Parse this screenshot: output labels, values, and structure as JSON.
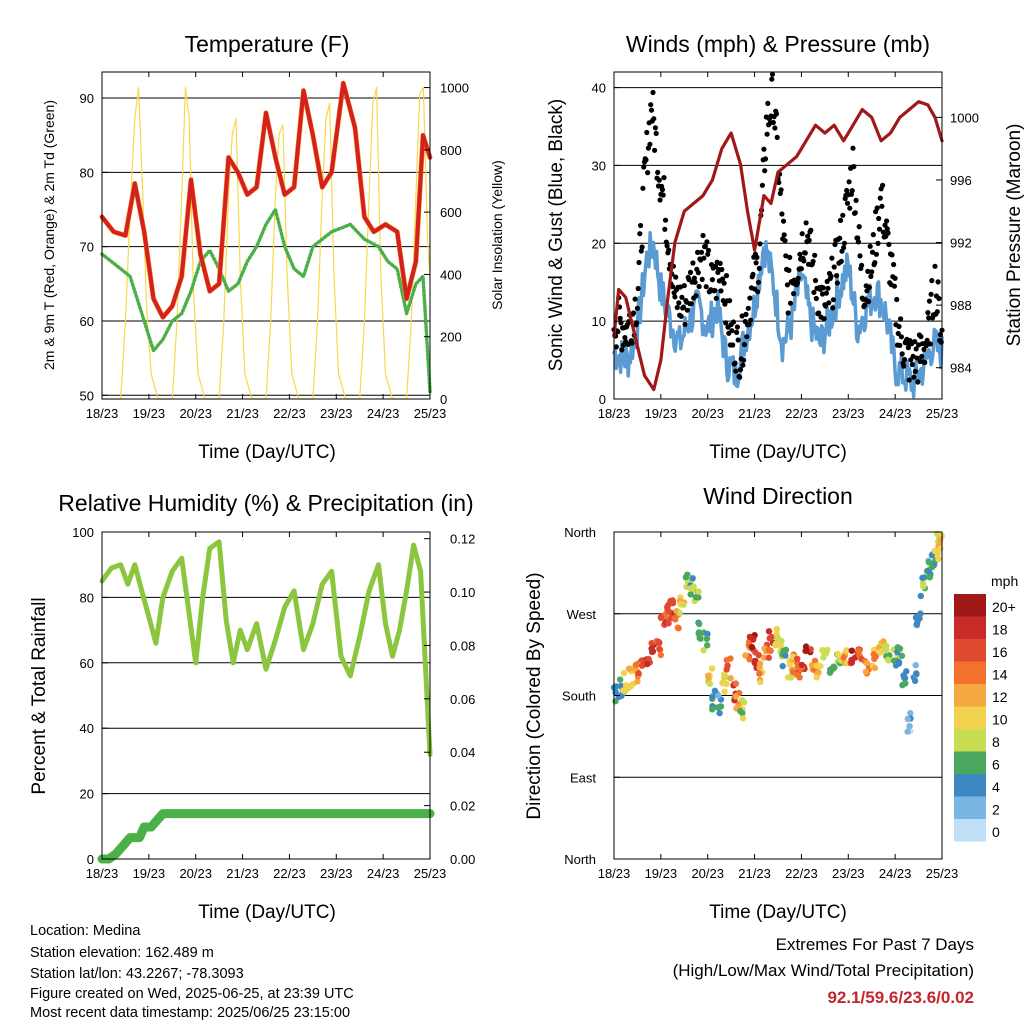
{
  "colors": {
    "temp2m": "#d42020",
    "temp9m": "#f39a1e",
    "dewpoint": "#4bb048",
    "solar": "#f7d84a",
    "wind": "#5a9bd4",
    "gust": "#000000",
    "pressure": "#a01818",
    "rh": "#8cc63f",
    "precip": "#4bb048",
    "extremes": "#c1272d"
  },
  "chart_data": [
    {
      "id": "temperature",
      "type": "line",
      "title": "Temperature (F)",
      "xlabel": "Time (Day/UTC)",
      "ylabel": "2m & 9m T (Red, Orange) & 2m Td (Green)",
      "ylabel_right": "Solar Insolation (Yellow)",
      "x_ticks": [
        "18/23",
        "19/23",
        "20/23",
        "21/23",
        "22/23",
        "23/23",
        "24/23",
        "25/23"
      ],
      "y_ticks": [
        "50",
        "60",
        "70",
        "80",
        "90"
      ],
      "y_ticks_right": [
        "0",
        "200",
        "400",
        "600",
        "800",
        "1000"
      ],
      "ylim": [
        49.5,
        93.5
      ],
      "ylim_right": [
        0,
        1050
      ],
      "xlim": [
        0,
        7
      ],
      "series": [
        {
          "role": "temp2m",
          "x": [
            0,
            0.25,
            0.5,
            0.7,
            0.9,
            1.1,
            1.3,
            1.5,
            1.7,
            1.9,
            2.1,
            2.3,
            2.5,
            2.7,
            2.9,
            3.1,
            3.3,
            3.5,
            3.7,
            3.9,
            4.1,
            4.3,
            4.5,
            4.7,
            4.9,
            5.15,
            5.4,
            5.6,
            5.8,
            6.05,
            6.3,
            6.5,
            6.7,
            6.85,
            7
          ],
          "values": [
            74,
            72,
            71.5,
            78.5,
            72,
            63,
            60.5,
            62,
            66,
            79,
            69,
            64,
            65,
            82,
            80,
            77,
            78,
            88,
            82,
            77,
            78,
            91,
            85,
            78,
            80,
            92,
            86,
            74,
            72,
            73,
            72,
            63,
            68,
            85,
            82
          ]
        },
        {
          "role": "dewpoint",
          "x": [
            0,
            0.3,
            0.6,
            0.9,
            1.1,
            1.3,
            1.5,
            1.7,
            1.9,
            2.1,
            2.3,
            2.5,
            2.7,
            2.9,
            3.1,
            3.3,
            3.5,
            3.7,
            3.9,
            4.1,
            4.3,
            4.5,
            4.7,
            4.9,
            5.1,
            5.3,
            5.6,
            5.9,
            6.1,
            6.3,
            6.5,
            6.7,
            6.85,
            7
          ],
          "values": [
            69,
            67.5,
            66,
            60,
            56,
            57.5,
            60,
            61,
            64,
            68,
            69.5,
            67,
            64,
            65,
            68,
            70,
            73,
            75,
            70,
            67,
            66,
            70,
            71,
            72,
            72.5,
            73,
            71,
            70,
            68,
            67,
            61,
            65,
            66,
            50.5
          ]
        },
        {
          "role": "solar",
          "x": [
            0,
            0.4,
            0.5,
            0.6,
            0.7,
            0.78,
            0.86,
            0.95,
            1.05,
            1.2,
            1.5,
            1.6,
            1.7,
            1.78,
            1.86,
            1.95,
            2.05,
            2.2,
            2.5,
            2.6,
            2.7,
            2.78,
            2.86,
            2.95,
            3.05,
            3.2,
            3.5,
            3.6,
            3.7,
            3.78,
            3.86,
            3.95,
            4.05,
            4.2,
            4.5,
            4.6,
            4.7,
            4.78,
            4.86,
            4.95,
            5.05,
            5.2,
            5.5,
            5.6,
            5.7,
            5.78,
            5.86,
            5.95,
            6.05,
            6.2,
            6.5,
            6.6,
            6.7,
            6.78,
            6.86,
            6.95,
            7
          ],
          "values": [
            0,
            0,
            250,
            600,
            900,
            1000,
            700,
            300,
            80,
            0,
            0,
            250,
            650,
            1000,
            900,
            350,
            80,
            0,
            0,
            250,
            650,
            850,
            900,
            400,
            80,
            0,
            0,
            250,
            650,
            850,
            880,
            400,
            80,
            0,
            0,
            250,
            650,
            900,
            950,
            400,
            80,
            0,
            0,
            250,
            650,
            950,
            1000,
            400,
            80,
            0,
            0,
            250,
            650,
            980,
            1000,
            500,
            400
          ]
        }
      ]
    },
    {
      "id": "winds",
      "type": "line",
      "title": "Winds (mph) & Pressure (mb)",
      "xlabel": "Time (Day/UTC)",
      "ylabel": "Sonic Wind & Gust (Blue, Black)",
      "ylabel_right": "Station Pressure (Maroon)",
      "x_ticks": [
        "18/23",
        "19/23",
        "20/23",
        "21/23",
        "22/23",
        "23/23",
        "24/23",
        "25/23"
      ],
      "y_ticks": [
        "0",
        "10",
        "20",
        "30",
        "40"
      ],
      "y_ticks_right": [
        "984",
        "988",
        "992",
        "996",
        "1000"
      ],
      "ylim": [
        0,
        42
      ],
      "ylim_right": [
        982,
        1002.9
      ],
      "xlim": [
        0,
        7
      ],
      "series": [
        {
          "role": "wind",
          "x": [
            0,
            0.3,
            0.5,
            0.7,
            0.85,
            1.0,
            1.2,
            1.4,
            1.6,
            1.8,
            2.0,
            2.2,
            2.4,
            2.6,
            2.8,
            3.0,
            3.2,
            3.4,
            3.6,
            3.8,
            4.0,
            4.2,
            4.4,
            4.6,
            4.8,
            5.0,
            5.2,
            5.4,
            5.6,
            5.8,
            6.0,
            6.2,
            6.4,
            6.6,
            6.8,
            7
          ],
          "values": [
            6,
            5,
            9,
            18,
            20,
            14,
            10,
            7,
            10,
            12,
            9,
            12,
            5,
            3,
            8,
            12,
            20,
            15,
            7,
            10,
            16,
            10,
            7,
            10,
            14,
            17,
            9,
            12,
            14,
            11,
            4,
            3,
            2,
            4,
            7,
            6
          ]
        },
        {
          "role": "gust",
          "x": [
            0,
            0.3,
            0.5,
            0.65,
            0.8,
            0.95,
            1.1,
            1.3,
            1.5,
            1.7,
            1.9,
            2.1,
            2.3,
            2.5,
            2.7,
            2.9,
            3.1,
            3.25,
            3.4,
            3.55,
            3.7,
            3.9,
            4.1,
            4.3,
            4.5,
            4.7,
            4.9,
            5.1,
            5.3,
            5.5,
            5.7,
            5.9,
            6.1,
            6.3,
            6.5,
            6.7,
            6.85,
            7
          ],
          "values": [
            10,
            9,
            13,
            28,
            38,
            30,
            24,
            13,
            12,
            16,
            19,
            14,
            17,
            8,
            6,
            13,
            18,
            35,
            39,
            26,
            14,
            17,
            22,
            15,
            11,
            16,
            22,
            30,
            14,
            17,
            26,
            17,
            8,
            5,
            5,
            8,
            15,
            8
          ]
        },
        {
          "role": "pressure",
          "x": [
            0,
            0.1,
            0.25,
            0.45,
            0.65,
            0.85,
            1.0,
            1.15,
            1.3,
            1.5,
            1.7,
            1.9,
            2.1,
            2.3,
            2.5,
            2.7,
            2.85,
            3.0,
            3.2,
            3.35,
            3.5,
            3.7,
            3.9,
            4.1,
            4.3,
            4.5,
            4.7,
            4.9,
            5.1,
            5.3,
            5.5,
            5.7,
            5.9,
            6.1,
            6.3,
            6.5,
            6.7,
            6.85,
            7
          ],
          "values": [
            986,
            989,
            988.5,
            986,
            983.5,
            982.6,
            984.5,
            988.5,
            992,
            994,
            994.5,
            995,
            996,
            998,
            999,
            997,
            994,
            991.5,
            995,
            994.5,
            996.5,
            997,
            997.5,
            998.5,
            999.5,
            999,
            999.5,
            998.5,
            999.5,
            1000.5,
            1000,
            998.5,
            999,
            1000,
            1000.5,
            1001,
            1000.8,
            1000,
            998.5
          ]
        }
      ]
    },
    {
      "id": "humidity",
      "type": "line",
      "title": "Relative Humidity (%) & Precipitation (in)",
      "xlabel": "Time (Day/UTC)",
      "ylabel": "Percent & Total Rainfall",
      "x_ticks": [
        "18/23",
        "19/23",
        "20/23",
        "21/23",
        "22/23",
        "23/23",
        "24/23",
        "25/23"
      ],
      "y_ticks": [
        "0",
        "20",
        "40",
        "60",
        "80",
        "100"
      ],
      "y_ticks_right": [
        "0.00",
        "0.02",
        "0.04",
        "0.06",
        "0.08",
        "0.10",
        "0.12"
      ],
      "ylim": [
        0,
        100
      ],
      "ylim_right": [
        0,
        0.1225
      ],
      "xlim": [
        0,
        7
      ],
      "series": [
        {
          "role": "rh",
          "x": [
            0,
            0.2,
            0.4,
            0.55,
            0.7,
            0.85,
            1.0,
            1.15,
            1.3,
            1.5,
            1.7,
            1.85,
            2.0,
            2.15,
            2.3,
            2.5,
            2.65,
            2.8,
            2.95,
            3.1,
            3.3,
            3.5,
            3.7,
            3.9,
            4.1,
            4.3,
            4.5,
            4.7,
            4.9,
            5.1,
            5.3,
            5.5,
            5.7,
            5.9,
            6.05,
            6.2,
            6.35,
            6.5,
            6.65,
            6.8,
            6.9,
            7
          ],
          "values": [
            85,
            89,
            90,
            84,
            90,
            82,
            74,
            66,
            80,
            88,
            92,
            76,
            60,
            80,
            95,
            97,
            73,
            60,
            70,
            64,
            72,
            58,
            67,
            77,
            82,
            64,
            72,
            84,
            88,
            62,
            56,
            68,
            82,
            90,
            72,
            62,
            70,
            82,
            96,
            88,
            60,
            32
          ]
        },
        {
          "role": "precip",
          "x": [
            0,
            0.15,
            0.3,
            0.45,
            0.6,
            0.8,
            0.9,
            1.05,
            1.2,
            1.3,
            7
          ],
          "values": [
            0,
            0,
            0.002,
            0.005,
            0.008,
            0.008,
            0.012,
            0.012,
            0.015,
            0.017,
            0.017
          ]
        }
      ]
    },
    {
      "id": "direction",
      "type": "scatter",
      "title": "Wind Direction",
      "xlabel": "Time (Day/UTC)",
      "ylabel": "Direction (Colored By Speed)",
      "x_ticks": [
        "18/23",
        "19/23",
        "20/23",
        "21/23",
        "22/23",
        "23/23",
        "24/23",
        "25/23"
      ],
      "y_ticks": [
        "North",
        "East",
        "South",
        "West",
        "North"
      ],
      "ylim": [
        0,
        360
      ],
      "xlim": [
        0,
        7
      ],
      "legend_title": "mph",
      "legend_labels": [
        "20+",
        "18",
        "16",
        "14",
        "12",
        "10",
        "8",
        "6",
        "4",
        "2",
        "0"
      ],
      "legend_colors": [
        "#a01818",
        "#c82c28",
        "#e04a30",
        "#f2712e",
        "#f7a740",
        "#f2d24e",
        "#c9dc52",
        "#4aa860",
        "#3d88c2",
        "#7bb6e2",
        "#bfe0f6"
      ],
      "points_x": [
        0.05,
        0.15,
        0.25,
        0.35,
        0.45,
        0.55,
        0.65,
        0.75,
        0.85,
        0.95,
        1.05,
        1.15,
        1.25,
        1.35,
        1.45,
        1.55,
        1.65,
        1.75,
        1.85,
        1.95,
        2.05,
        2.15,
        2.25,
        2.35,
        2.45,
        2.55,
        2.65,
        2.75,
        2.85,
        2.95,
        3.05,
        3.15,
        3.25,
        3.35,
        3.45,
        3.55,
        3.65,
        3.75,
        3.85,
        3.95,
        4.05,
        4.15,
        4.25,
        4.35,
        4.5,
        4.65,
        4.8,
        4.95,
        5.1,
        5.25,
        5.4,
        5.55,
        5.7,
        5.85,
        6.0,
        6.1,
        6.2,
        6.3,
        6.4,
        6.5,
        6.6,
        6.7,
        6.8,
        6.9,
        6.95
      ],
      "points_y": [
        180,
        190,
        195,
        200,
        205,
        210,
        215,
        225,
        230,
        235,
        260,
        270,
        275,
        265,
        280,
        310,
        300,
        290,
        250,
        240,
        200,
        175,
        170,
        195,
        210,
        185,
        175,
        165,
        230,
        240,
        220,
        205,
        230,
        240,
        245,
        230,
        220,
        210,
        215,
        210,
        220,
        225,
        215,
        210,
        220,
        215,
        220,
        225,
        220,
        230,
        215,
        220,
        230,
        225,
        220,
        225,
        200,
        150,
        205,
        260,
        300,
        320,
        330,
        340,
        350
      ],
      "points_speed": [
        4,
        5,
        8,
        10,
        12,
        14,
        16,
        18,
        17,
        14,
        16,
        17,
        18,
        14,
        10,
        8,
        6,
        8,
        6,
        6,
        10,
        4,
        4,
        8,
        14,
        16,
        12,
        8,
        14,
        18,
        17,
        12,
        14,
        16,
        10,
        8,
        6,
        10,
        12,
        14,
        16,
        18,
        14,
        10,
        8,
        6,
        8,
        12,
        18,
        16,
        14,
        12,
        10,
        8,
        6,
        4,
        4,
        2,
        4,
        4,
        6,
        4,
        6,
        8,
        10
      ]
    }
  ],
  "footer": {
    "location": "Location: Medina",
    "elevation": "Station elevation: 162.489 m",
    "latlon": "Station lat/lon: 43.2267; -78.3093",
    "created": "Figure created on Wed, 2025-06-25, at 23:39 UTC",
    "recent": "Most recent data timestamp: 2025/06/25 23:15:00"
  },
  "extremes": {
    "title": "Extremes For Past 7 Days",
    "subtitle": "(High/Low/Max Wind/Total Precipitation)",
    "values": "92.1/59.6/23.6/0.02"
  }
}
